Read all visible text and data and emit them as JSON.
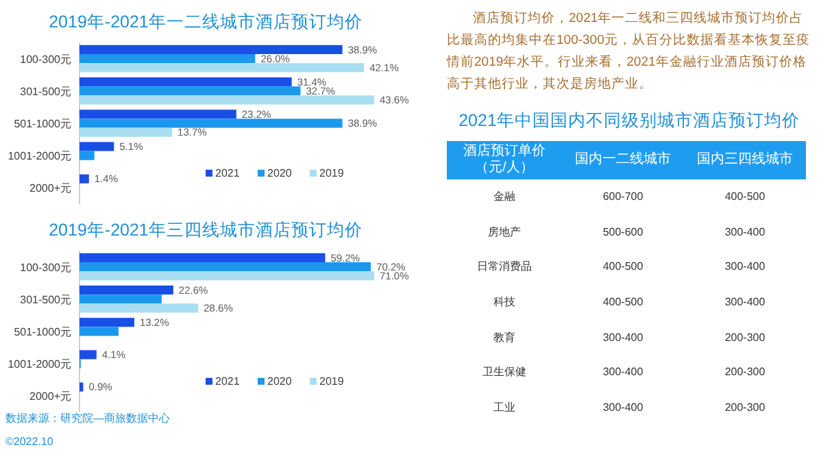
{
  "chart_data": [
    {
      "type": "bar",
      "orientation": "horizontal",
      "title": "2019年-2021年一二线城市酒店预订均价",
      "categories": [
        "100-300元",
        "301-500元",
        "501-1000元",
        "1001-2000元",
        "2000+元"
      ],
      "legend": "bottom right",
      "series": [
        {
          "name": "2021",
          "color": "#1a4fe6",
          "values": [
            38.9,
            31.4,
            23.2,
            5.1,
            1.4
          ],
          "value_labels": [
            "38.9%",
            "31.4%",
            "23.2%",
            "5.1%",
            "1.4%"
          ]
        },
        {
          "name": "2020",
          "color": "#1a98f0",
          "values": [
            26.0,
            32.7,
            38.9,
            2.2,
            null
          ],
          "value_labels": [
            "26.0%",
            "32.7%",
            "38.9%",
            null,
            null
          ]
        },
        {
          "name": "2019",
          "color": "#a9def2",
          "values": [
            42.1,
            43.6,
            13.7,
            null,
            null
          ],
          "value_labels": [
            "42.1%",
            "43.6%",
            "13.7%",
            null,
            null
          ]
        }
      ]
    },
    {
      "type": "bar",
      "orientation": "horizontal",
      "title": "2019年-2021年三四线城市酒店预订均价",
      "categories": [
        "100-300元",
        "301-500元",
        "501-1000元",
        "1001-2000元",
        "2000+元"
      ],
      "legend": "bottom right",
      "series": [
        {
          "name": "2021",
          "color": "#1a4fe6",
          "values": [
            59.2,
            22.6,
            13.2,
            4.1,
            0.9
          ],
          "value_labels": [
            "59.2%",
            "22.6%",
            "13.2%",
            "4.1%",
            "0.9%"
          ]
        },
        {
          "name": "2020",
          "color": "#1a98f0",
          "values": [
            70.2,
            19.8,
            9.4,
            0.3,
            null
          ],
          "value_labels": [
            "70.2%",
            null,
            null,
            null,
            null
          ]
        },
        {
          "name": "2019",
          "color": "#a9def2",
          "values": [
            71.0,
            28.6,
            null,
            null,
            null
          ],
          "value_labels": [
            "71.0%",
            "28.6%",
            null,
            null,
            null
          ]
        }
      ],
      "annotations": [
        "数据来源：研究院—商旅数据中心",
        "©2022.10"
      ]
    },
    {
      "type": "other",
      "title": "2021年中国国内不同级别城市酒店预订均价",
      "annotations": [
        "酒店预订均价，2021年一二线和三四线城市预订均价占比最高的均集中在100-300元，从百分比数据看基本恢复至疫情前2019年水平。行业来看，2021年金融行业酒店预订价格高于其他行业，其次是房地产业。"
      ],
      "categories": [
        "酒店预订单价（元/人）",
        "国内一二线城市",
        "国内三四线城市"
      ],
      "y_categories": [
        "金融",
        "房地产",
        "日常消费品",
        "科技",
        "教育",
        "卫生保健",
        "工业"
      ],
      "cell_labels": [
        [
          "600-700",
          "400-500"
        ],
        [
          "500-600",
          "300-400"
        ],
        [
          "400-500",
          "300-400"
        ],
        [
          "400-500",
          "300-400"
        ],
        [
          "300-400",
          "200-300"
        ],
        [
          "300-400",
          "200-300"
        ],
        [
          "300-400",
          "200-300"
        ]
      ]
    }
  ]
}
